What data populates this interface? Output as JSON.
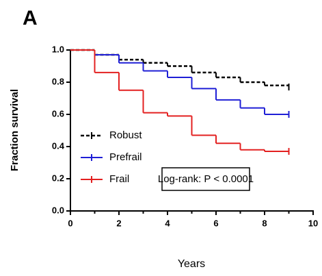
{
  "chart_data": {
    "type": "step",
    "panel_label": "A",
    "x_label": "Years",
    "y_label": "Fraction survival",
    "annotation": "Log-rank: P < 0.0001",
    "x": [
      0,
      1,
      2,
      3,
      4,
      5,
      6,
      7,
      8,
      9
    ],
    "series": [
      {
        "name": "Robust",
        "color": "#000000",
        "dash": true,
        "values": [
          1.0,
          0.97,
          0.94,
          0.92,
          0.9,
          0.86,
          0.83,
          0.8,
          0.78,
          0.77
        ]
      },
      {
        "name": "Prefrail",
        "color": "#1f1fd6",
        "dash": false,
        "values": [
          1.0,
          0.97,
          0.92,
          0.87,
          0.83,
          0.76,
          0.69,
          0.64,
          0.6,
          0.6
        ]
      },
      {
        "name": "Frail",
        "color": "#e32020",
        "dash": false,
        "values": [
          1.0,
          0.86,
          0.75,
          0.61,
          0.59,
          0.47,
          0.42,
          0.38,
          0.37,
          0.37
        ]
      }
    ],
    "xlim": [
      0,
      10
    ],
    "xticks": [
      0,
      2,
      4,
      6,
      8,
      10
    ],
    "xminor_ticks": [
      1,
      3,
      5,
      7,
      9
    ],
    "ylim": [
      0,
      1
    ],
    "yticks": [
      {
        "value": 0,
        "label": "0.0"
      },
      0.2,
      0.4,
      0.6,
      0.8,
      {
        "value": 1,
        "label": "1.0"
      }
    ]
  }
}
